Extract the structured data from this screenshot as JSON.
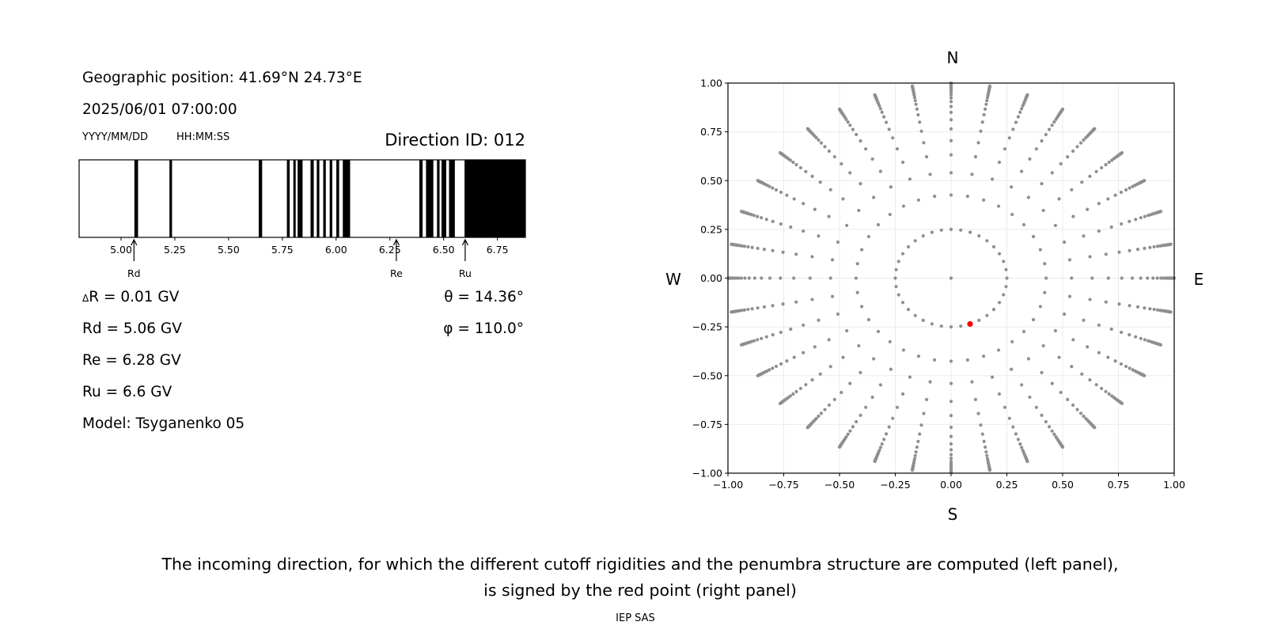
{
  "left_panel": {
    "geo_position": "Geographic position: 41.69°N 24.73°E",
    "datetime": "2025/06/01 07:00:00",
    "date_format": "YYYY/MM/DD",
    "time_format": "HH:MM:SS",
    "direction_id": "Direction ID: 012",
    "delta_r_symbol": "Δ",
    "delta_r": "R = 0.01 GV",
    "rd": "Rd = 5.06 GV",
    "re": "Re = 6.28 GV",
    "ru": "Ru = 6.6 GV",
    "model": "Model: Tsyganenko 05",
    "theta_symbol": "θ",
    "theta": " = 14.36°",
    "phi_symbol": "φ",
    "phi": " = 110.0°"
  },
  "caption": {
    "line1": "The incoming direction, for which the different cutoff rigidities and the penumbra structure are computed (left panel),",
    "line2": "is signed by the red point (right panel)"
  },
  "footer": "IEP SAS",
  "chart_data": [
    {
      "type": "bar",
      "subtype": "penumbra-band",
      "xlabel": "",
      "xlim": [
        4.805,
        6.88
      ],
      "xticks": [
        "5.00",
        "5.25",
        "5.50",
        "5.75",
        "6.00",
        "6.25",
        "6.50",
        "6.75"
      ],
      "forbidden_color": "#000000",
      "allowed_color": "#ffffff",
      "forbidden_intervals": [
        [
          5.062,
          5.079
        ],
        [
          5.225,
          5.237
        ],
        [
          5.64,
          5.656
        ],
        [
          5.771,
          5.784
        ],
        [
          5.801,
          5.812
        ],
        [
          5.821,
          5.844
        ],
        [
          5.881,
          5.896
        ],
        [
          5.91,
          5.922
        ],
        [
          5.94,
          5.952
        ],
        [
          5.97,
          5.982
        ],
        [
          6.001,
          6.014
        ],
        [
          6.031,
          6.065
        ],
        [
          6.387,
          6.402
        ],
        [
          6.418,
          6.452
        ],
        [
          6.469,
          6.481
        ],
        [
          6.49,
          6.512
        ],
        [
          6.525,
          6.552
        ],
        [
          6.597,
          6.88
        ]
      ],
      "markers": [
        {
          "label": "Rd",
          "value": 5.06
        },
        {
          "label": "Re",
          "value": 6.28
        },
        {
          "label": "Ru",
          "value": 6.6
        }
      ]
    },
    {
      "type": "scatter",
      "xlim": [
        -1,
        1
      ],
      "ylim": [
        -1,
        1
      ],
      "xticks": [
        "−1.00",
        "−0.75",
        "−0.50",
        "−0.25",
        "0.00",
        "0.25",
        "0.50",
        "0.75",
        "1.00"
      ],
      "yticks": [
        "−1.00",
        "−0.75",
        "−0.50",
        "−0.25",
        "0.00",
        "0.25",
        "0.50",
        "0.75",
        "1.00"
      ],
      "grid": true,
      "compass": {
        "top": "N",
        "bottom": "S",
        "left": "W",
        "right": "E"
      },
      "point_color": "#8f8f8f",
      "highlight_color": "#ff0000",
      "center_point": [
        0,
        0
      ],
      "inner_ring": {
        "radius": 0.25,
        "azimuth_step_deg": 10
      },
      "spokes": {
        "azimuth_step_deg": 10,
        "radii": [
          0.426,
          0.54,
          0.632,
          0.705,
          0.765,
          0.812,
          0.85,
          0.88,
          0.905,
          0.924,
          0.94,
          0.952,
          0.962,
          0.97,
          0.976,
          0.981,
          0.985,
          0.988,
          0.991,
          0.993,
          0.995,
          0.997,
          1.0
        ]
      },
      "highlight_point": [
        0.085,
        -0.235
      ]
    }
  ]
}
